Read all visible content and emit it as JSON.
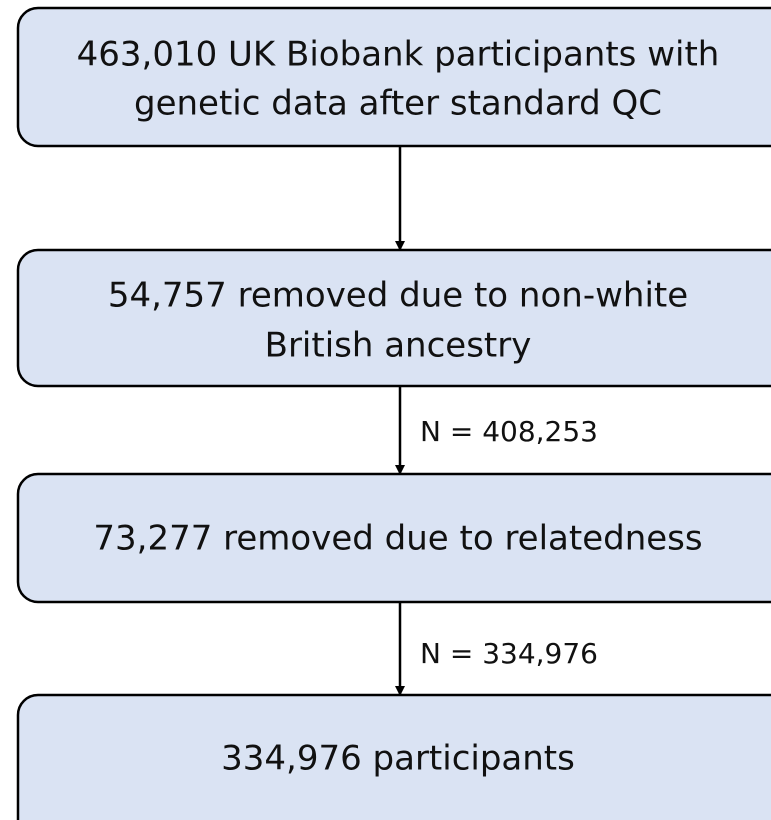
{
  "nodes": [
    {
      "lines": [
        "463,010 UK Biobank participants with",
        "genetic data after standard QC"
      ]
    },
    {
      "lines": [
        "54,757 removed due to non-white",
        "British ancestry"
      ]
    },
    {
      "lines": [
        "73,277 removed due to relatedness"
      ]
    },
    {
      "lines": [
        "334,976 participants"
      ]
    }
  ],
  "edges": [
    {
      "label": "N = 408,253"
    },
    {
      "label": "N = 334,976"
    }
  ]
}
